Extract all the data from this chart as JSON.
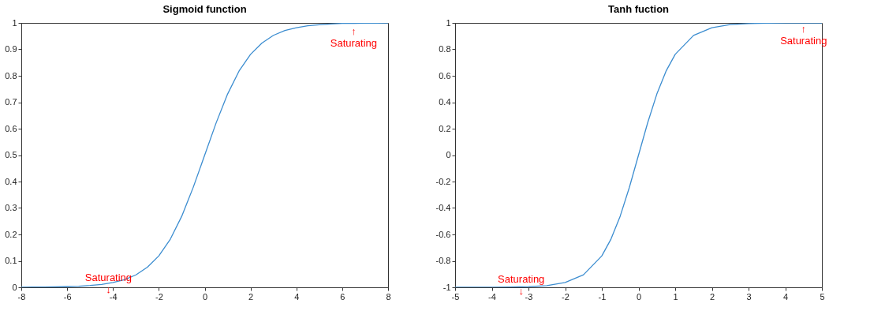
{
  "chart_data": [
    {
      "type": "line",
      "title": "Sigmoid function",
      "grid": false,
      "x": [
        -8,
        -7.5,
        -7,
        -6.5,
        -6,
        -5.5,
        -5,
        -4.5,
        -4,
        -3.5,
        -3,
        -2.5,
        -2,
        -1.5,
        -1,
        -0.5,
        0,
        0.5,
        1,
        1.5,
        2,
        2.5,
        3,
        3.5,
        4,
        4.5,
        5,
        5.5,
        6,
        6.5,
        7,
        7.5,
        8
      ],
      "series": [
        {
          "color": "#3c8dd0",
          "values": [
            0,
            0.001,
            0.001,
            0.002,
            0.003,
            0.004,
            0.007,
            0.011,
            0.018,
            0.029,
            0.047,
            0.076,
            0.119,
            0.182,
            0.269,
            0.378,
            0.5,
            0.622,
            0.731,
            0.818,
            0.881,
            0.924,
            0.953,
            0.971,
            0.982,
            0.989,
            0.993,
            0.996,
            0.998,
            0.998,
            0.999,
            0.999,
            1.0
          ]
        }
      ],
      "xlim": [
        -8,
        8
      ],
      "xticks": [
        -8,
        -6,
        -4,
        -2,
        0,
        2,
        4,
        6,
        8
      ],
      "ylim": [
        0,
        1
      ],
      "yticks": [
        0,
        0.1,
        0.2,
        0.3,
        0.4,
        0.5,
        0.6,
        0.7,
        0.8,
        0.9,
        1
      ],
      "annotations": [
        {
          "text": "Saturating\n↓",
          "x": -4.2,
          "y": 0.015
        },
        {
          "text": "↑\nSaturating",
          "x": 6.5,
          "y": 0.985
        }
      ]
    },
    {
      "type": "line",
      "title": "Tanh fuction",
      "grid": false,
      "x": [
        -5,
        -4.5,
        -4,
        -3.5,
        -3,
        -2.5,
        -2,
        -1.5,
        -1,
        -0.75,
        -0.5,
        -0.25,
        0,
        0.25,
        0.5,
        0.75,
        1,
        1.5,
        2,
        2.5,
        3,
        3.5,
        4,
        4.5,
        5
      ],
      "series": [
        {
          "color": "#3c8dd0",
          "values": [
            -1.0,
            -1.0,
            -0.999,
            -0.998,
            -0.995,
            -0.987,
            -0.964,
            -0.905,
            -0.762,
            -0.635,
            -0.462,
            -0.245,
            0,
            0.245,
            0.462,
            0.635,
            0.762,
            0.905,
            0.964,
            0.987,
            0.995,
            0.998,
            0.999,
            1.0,
            1.0
          ]
        }
      ],
      "xlim": [
        -5,
        5
      ],
      "xticks": [
        -5,
        -4,
        -3,
        -2,
        -1,
        0,
        1,
        2,
        3,
        4,
        5
      ],
      "ylim": [
        -1,
        1
      ],
      "yticks": [
        -1,
        -0.8,
        -0.6,
        -0.4,
        -0.2,
        0,
        0.2,
        0.4,
        0.6,
        0.8,
        1
      ],
      "annotations": [
        {
          "text": "Saturating\n↓",
          "x": -3.2,
          "y": -0.985
        },
        {
          "text": "↑\nSaturating",
          "x": 4.5,
          "y": 0.99
        }
      ]
    }
  ]
}
